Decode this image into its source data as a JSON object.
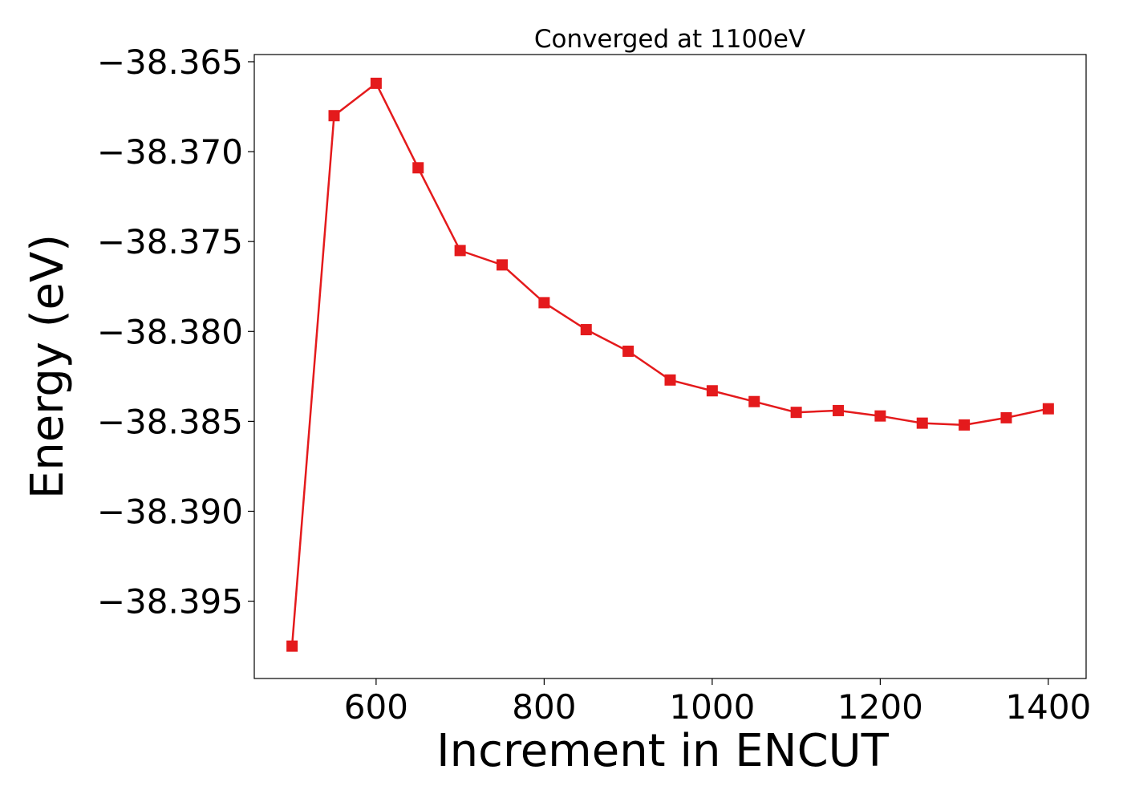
{
  "chart_data": {
    "type": "line",
    "title": "Converged at 1100eV",
    "xlabel": "Increment in ENCUT",
    "ylabel": "Energy (eV)",
    "xlim": [
      455,
      1445
    ],
    "ylim": [
      -38.3993,
      -38.3646
    ],
    "xticks": [
      600,
      800,
      1000,
      1200,
      1400
    ],
    "xtick_labels": [
      "600",
      "800",
      "1000",
      "1200",
      "1400"
    ],
    "yticks": [
      -38.365,
      -38.37,
      -38.375,
      -38.38,
      -38.385,
      -38.39,
      -38.395
    ],
    "ytick_labels": [
      "−38.365",
      "−38.370",
      "−38.375",
      "−38.380",
      "−38.385",
      "−38.390",
      "−38.395"
    ],
    "grid": false,
    "marker": "square",
    "color": "#e41a1c",
    "series": [
      {
        "x": [
          500,
          550,
          600,
          650,
          700,
          750,
          800,
          850,
          900,
          950,
          1000,
          1050,
          1100,
          1150,
          1200,
          1250,
          1300,
          1350,
          1400
        ],
        "y": [
          -38.3975,
          -38.368,
          -38.3662,
          -38.3709,
          -38.3755,
          -38.3763,
          -38.3784,
          -38.3799,
          -38.3811,
          -38.3827,
          -38.3833,
          -38.3839,
          -38.3845,
          -38.3844,
          -38.3847,
          -38.3851,
          -38.3852,
          -38.3848,
          -38.3843
        ]
      }
    ]
  }
}
